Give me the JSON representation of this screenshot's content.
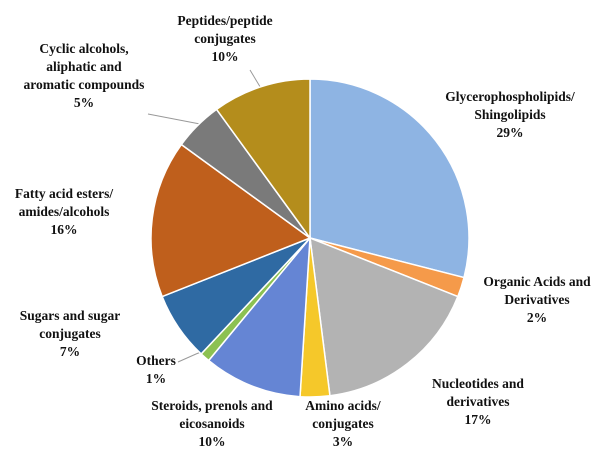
{
  "chart_data": {
    "type": "pie",
    "categories": [
      "Glycerophospholipids/Shingolipids",
      "Organic Acids and Derivatives",
      "Nucleotides and derivatives",
      "Amino acids/ conjugates",
      "Steroids, prenols and eicosanoids",
      "Others",
      "Sugars and sugar conjugates",
      "Fatty acid esters/ amides/alcohols",
      "Cyclic alcohols, aliphatic and aromatic compounds",
      "Peptides/peptide conjugates"
    ],
    "values": [
      29,
      2,
      17,
      3,
      10,
      1,
      7,
      16,
      5,
      10
    ],
    "value_labels": [
      "29%",
      "2%",
      "17%",
      "3%",
      "10%",
      "1%",
      "7%",
      "16%",
      "5%",
      "10%"
    ],
    "colors": [
      "#8eb4e3",
      "#f59a4a",
      "#b3b3b3",
      "#f5c82a",
      "#6585d4",
      "#8cc152",
      "#2f6aa3",
      "#bf5f1c",
      "#7a7a7a",
      "#b48d1c"
    ]
  }
}
